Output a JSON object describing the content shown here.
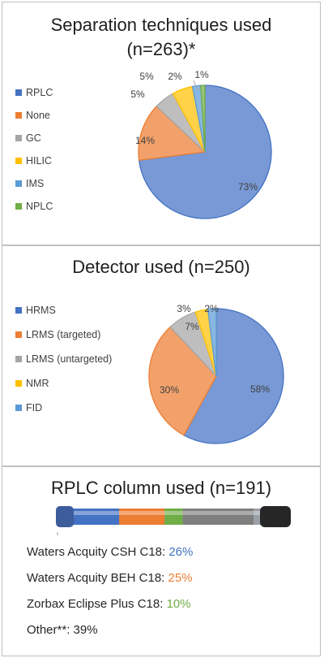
{
  "chart_data": [
    {
      "type": "pie",
      "title": "Separation techniques used",
      "subtitle": "(n=263)*",
      "categories": [
        "RPLC",
        "None",
        "GC",
        "HILIC",
        "IMS",
        "NPLC"
      ],
      "values": [
        73,
        14,
        5,
        5,
        2,
        1
      ],
      "value_labels": [
        "73%",
        "14%",
        "5%",
        "5%",
        "2%",
        "1%"
      ],
      "colors": [
        "#4472c4",
        "#ed7d31",
        "#a5a5a5",
        "#ffc000",
        "#5b9bd5",
        "#70ad47"
      ],
      "legend": "left"
    },
    {
      "type": "pie",
      "title": "Detector used (n=250)",
      "categories": [
        "HRMS",
        "LRMS (targeted)",
        "LRMS (untargeted)",
        "NMR",
        "FID"
      ],
      "values": [
        58,
        30,
        7,
        3,
        2
      ],
      "value_labels": [
        "58%",
        "30%",
        "7%",
        "3%",
        "2%"
      ],
      "colors": [
        "#4472c4",
        "#ed7d31",
        "#a5a5a5",
        "#ffc000",
        "#5b9bd5"
      ],
      "legend": "left"
    }
  ],
  "column": {
    "title": "RPLC column used (n=191)",
    "segments": [
      {
        "value": 26,
        "color": "#4472c4"
      },
      {
        "value": 25,
        "color": "#ed7d31"
      },
      {
        "value": 10,
        "color": "#70ad47"
      },
      {
        "value": 39,
        "color": "#7f7f7f"
      }
    ],
    "items": [
      {
        "name": "Waters Acquity CSH C18:",
        "value": "26%",
        "color": "#4472c4"
      },
      {
        "name": "Waters Acquity BEH C18:",
        "value": "25%",
        "color": "#ed7d31"
      },
      {
        "name": "Zorbax Eclipse Plus C18:",
        "value": "10%",
        "color": "#70ad47"
      },
      {
        "name": "Other**:",
        "value": "39%",
        "color": "#262626"
      }
    ]
  }
}
